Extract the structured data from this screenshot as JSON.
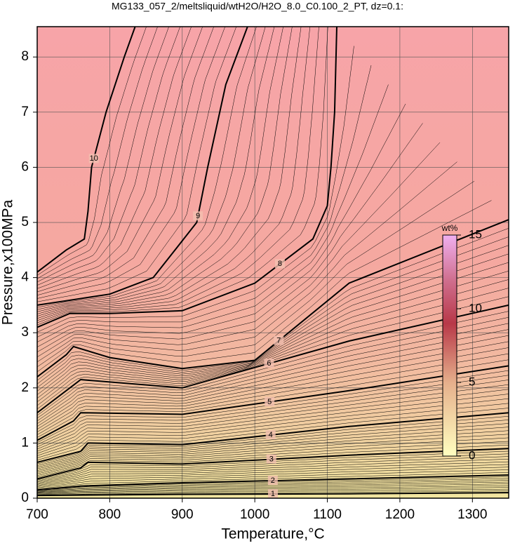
{
  "chart_data": {
    "type": "contour",
    "title": "MG133_057_2/meltsliquid/wtH2O/H2O_8.0_C0.100_2_PT, dz=0.1:",
    "x_label": "Temperature,°C",
    "y_label": "Pressure,x100MPa",
    "xlim": [
      700,
      1350
    ],
    "ylim": [
      0,
      8.55
    ],
    "xticks": [
      700,
      800,
      900,
      1000,
      1100,
      1200,
      1300
    ],
    "yticks": [
      0,
      1,
      2,
      3,
      4,
      5,
      6,
      7,
      8
    ],
    "grid": true,
    "contours": [
      {
        "level": 1,
        "x": [
          700,
          900,
          1130,
          1350
        ],
        "y": [
          0.05,
          0.07,
          0.08,
          0.1
        ]
      },
      {
        "level": 2,
        "x": [
          700,
          760,
          900,
          1130,
          1350
        ],
        "y": [
          0.15,
          0.22,
          0.28,
          0.35,
          0.42
        ]
      },
      {
        "level": 3,
        "x": [
          700,
          760,
          770,
          900,
          1130,
          1350
        ],
        "y": [
          0.35,
          0.55,
          0.65,
          0.62,
          0.78,
          0.9
        ]
      },
      {
        "level": 4,
        "x": [
          700,
          760,
          770,
          900,
          1130,
          1350
        ],
        "y": [
          0.65,
          0.85,
          1.0,
          0.97,
          1.3,
          1.55
        ]
      },
      {
        "level": 5,
        "x": [
          700,
          750,
          760,
          900,
          1130,
          1350
        ],
        "y": [
          1.05,
          1.4,
          1.55,
          1.52,
          1.95,
          2.4
        ]
      },
      {
        "level": 6,
        "x": [
          700,
          750,
          760,
          900,
          1130,
          1350
        ],
        "y": [
          1.55,
          2.05,
          2.15,
          2.0,
          2.85,
          3.5
        ]
      },
      {
        "level": 7,
        "x": [
          700,
          740,
          750,
          800,
          900,
          1000,
          1130,
          1350
        ],
        "y": [
          2.2,
          2.6,
          2.75,
          2.55,
          2.35,
          2.5,
          3.9,
          5.05
        ]
      },
      {
        "level": 8,
        "x": [
          700,
          745,
          800,
          900,
          1000,
          1080,
          1100,
          1105,
          1110,
          1113
        ],
        "y": [
          3.1,
          3.35,
          3.35,
          3.4,
          3.9,
          4.7,
          5.3,
          6,
          7,
          8.55
        ]
      },
      {
        "level": 9,
        "x": [
          700,
          750,
          800,
          860,
          920,
          935,
          960,
          990
        ],
        "y": [
          3.5,
          3.6,
          3.7,
          4.0,
          5,
          6,
          7.5,
          8.55
        ]
      },
      {
        "level": 10,
        "x": [
          700,
          740,
          765,
          770,
          775,
          795,
          820,
          835
        ],
        "y": [
          4.1,
          4.5,
          4.7,
          5.2,
          6.0,
          7.0,
          8.0,
          8.55
        ]
      }
    ],
    "colorbar": {
      "label": "wt%",
      "lim": [
        0,
        15
      ],
      "ticks": [
        0,
        5,
        10,
        15
      ]
    }
  }
}
